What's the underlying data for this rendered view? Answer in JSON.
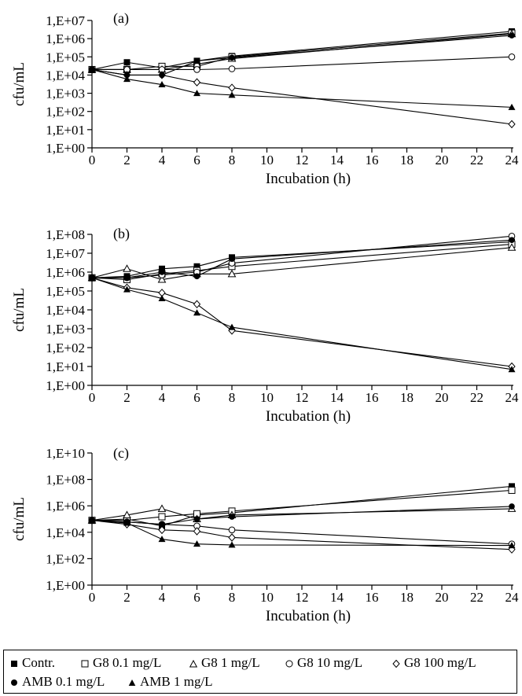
{
  "chart_data": [
    {
      "type": "line",
      "title": "(a)",
      "xlabel": "Incubation (h)",
      "ylabel": "cfu/mL",
      "log_scale_y": true,
      "xlim": [
        0,
        24
      ],
      "ylim_exp": [
        0,
        7
      ],
      "x_ticks": [
        0,
        2,
        4,
        6,
        8,
        10,
        12,
        14,
        16,
        18,
        20,
        22,
        24
      ],
      "y_tick_labels": [
        "1,E+00",
        "1,E+01",
        "1,E+02",
        "1,E+03",
        "1,E+04",
        "1,E+05",
        "1,E+06",
        "1,E+07"
      ],
      "x": [
        0,
        2,
        4,
        6,
        8,
        24
      ],
      "series": [
        {
          "key": "contr",
          "values": [
            20000,
            50000,
            25000,
            60000,
            110000,
            2500000
          ]
        },
        {
          "key": "g8_01",
          "values": [
            20000,
            20000,
            30000,
            30000,
            100000,
            2000000
          ]
        },
        {
          "key": "g8_1",
          "values": [
            20000,
            20000,
            20000,
            40000,
            80000,
            1800000
          ]
        },
        {
          "key": "g8_10",
          "values": [
            20000,
            20000,
            20000,
            20000,
            22000,
            100000
          ]
        },
        {
          "key": "g8_100",
          "values": [
            20000,
            10000,
            10000,
            4000,
            2000,
            20
          ]
        },
        {
          "key": "amb_01",
          "values": [
            20000,
            10000,
            10000,
            60000,
            90000,
            1500000
          ]
        },
        {
          "key": "amb_1",
          "values": [
            20000,
            6000,
            3000,
            1000,
            800,
            170
          ]
        }
      ]
    },
    {
      "type": "line",
      "title": "(b)",
      "xlabel": "Incubation (h)",
      "ylabel": "cfu/mL",
      "log_scale_y": true,
      "xlim": [
        0,
        24
      ],
      "ylim_exp": [
        0,
        8
      ],
      "x_ticks": [
        0,
        2,
        4,
        6,
        8,
        10,
        12,
        14,
        16,
        18,
        20,
        22,
        24
      ],
      "y_tick_labels": [
        "1,E+00",
        "1,E+01",
        "1,E+02",
        "1,E+03",
        "1,E+04",
        "1,E+05",
        "1,E+06",
        "1,E+07",
        "1,E+08"
      ],
      "x": [
        0,
        2,
        4,
        6,
        8,
        24
      ],
      "series": [
        {
          "key": "contr",
          "values": [
            500000,
            600000,
            1500000,
            2000000,
            6000000,
            40000000
          ]
        },
        {
          "key": "g8_01",
          "values": [
            500000,
            400000,
            800000,
            1200000,
            2000000,
            30000000
          ]
        },
        {
          "key": "g8_1",
          "values": [
            500000,
            1500000,
            400000,
            800000,
            800000,
            20000000
          ]
        },
        {
          "key": "g8_10",
          "values": [
            500000,
            500000,
            700000,
            1000000,
            3000000,
            80000000
          ]
        },
        {
          "key": "g8_100",
          "values": [
            500000,
            150000,
            80000,
            20000,
            800,
            10
          ]
        },
        {
          "key": "amb_01",
          "values": [
            500000,
            500000,
            1000000,
            600000,
            5000000,
            50000000
          ]
        },
        {
          "key": "amb_1",
          "values": [
            500000,
            120000,
            40000,
            7000,
            1200,
            7
          ]
        }
      ]
    },
    {
      "type": "line",
      "title": "(c)",
      "xlabel": "Incubation (h)",
      "ylabel": "cfu/mL",
      "log_scale_y": true,
      "xlim": [
        0,
        24
      ],
      "ylim_exp": [
        0,
        10
      ],
      "x_ticks": [
        0,
        2,
        4,
        6,
        8,
        10,
        12,
        14,
        16,
        18,
        20,
        22,
        24
      ],
      "y_tick_labels": [
        "1,E+00",
        "1,E+02",
        "1,E+04",
        "1,E+06",
        "1,E+08",
        "1,E+10"
      ],
      "y_tick_exps": [
        0,
        2,
        4,
        6,
        8,
        10
      ],
      "x": [
        0,
        2,
        4,
        6,
        8,
        24
      ],
      "series": [
        {
          "key": "contr",
          "values": [
            80000,
            100000,
            30000,
            200000,
            300000,
            30000000
          ]
        },
        {
          "key": "g8_01",
          "values": [
            80000,
            80000,
            150000,
            250000,
            400000,
            15000000
          ]
        },
        {
          "key": "g8_1",
          "values": [
            80000,
            200000,
            600000,
            100000,
            200000,
            600000
          ]
        },
        {
          "key": "g8_10",
          "values": [
            80000,
            60000,
            40000,
            30000,
            15000,
            1300
          ]
        },
        {
          "key": "g8_100",
          "values": [
            80000,
            40000,
            15000,
            12000,
            4000,
            500
          ]
        },
        {
          "key": "amb_01",
          "values": [
            80000,
            60000,
            40000,
            100000,
            150000,
            900000
          ]
        },
        {
          "key": "amb_1",
          "values": [
            80000,
            50000,
            3000,
            1300,
            1100,
            1000
          ]
        }
      ]
    }
  ],
  "legend": [
    {
      "key": "contr",
      "label": "Contr.",
      "marker": "square-filled"
    },
    {
      "key": "g8_01",
      "label": "G8 0.1 mg/L",
      "marker": "square-open"
    },
    {
      "key": "g8_1",
      "label": "G8 1 mg/L",
      "marker": "triangle-open"
    },
    {
      "key": "g8_10",
      "label": "G8 10 mg/L",
      "marker": "circle-open"
    },
    {
      "key": "g8_100",
      "label": "G8 100 mg/L",
      "marker": "diamond-open"
    },
    {
      "key": "amb_01",
      "label": "AMB 0.1 mg/L",
      "marker": "circle-filled"
    },
    {
      "key": "amb_1",
      "label": "AMB 1 mg/L",
      "marker": "triangle-filled"
    }
  ]
}
